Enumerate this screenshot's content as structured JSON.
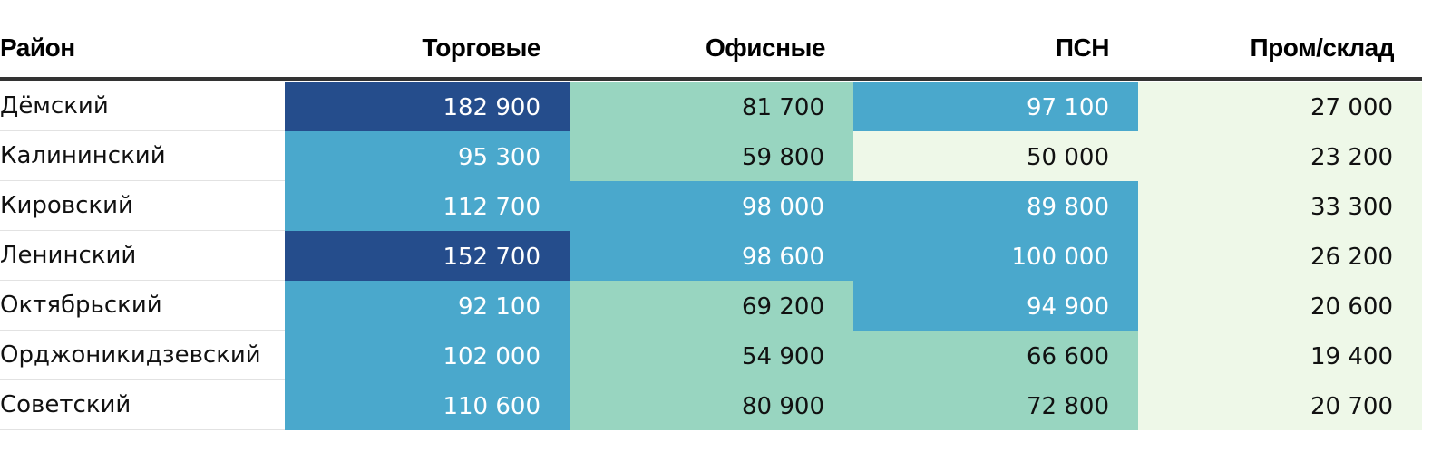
{
  "chart_data": {
    "type": "table",
    "columns": [
      "Район",
      "Торговые",
      "Офисные",
      "ПСН",
      "Пром/склад"
    ],
    "rows": [
      {
        "district": "Дёмский",
        "values": [
          182900,
          81700,
          97100,
          27000
        ],
        "labels": [
          "182 900",
          "81 700",
          "97 100",
          "27 000"
        ]
      },
      {
        "district": "Калининский",
        "values": [
          95300,
          59800,
          50000,
          23200
        ],
        "labels": [
          "95 300",
          "59 800",
          "50 000",
          "23 200"
        ]
      },
      {
        "district": "Кировский",
        "values": [
          112700,
          98000,
          89800,
          33300
        ],
        "labels": [
          "112 700",
          "98 000",
          "89 800",
          "33 300"
        ]
      },
      {
        "district": "Ленинский",
        "values": [
          152700,
          98600,
          100000,
          26200
        ],
        "labels": [
          "152 700",
          "98 600",
          "100 000",
          "26 200"
        ]
      },
      {
        "district": "Октябрьский",
        "values": [
          92100,
          69200,
          94900,
          20600
        ],
        "labels": [
          "92 100",
          "69 200",
          "94 900",
          "20 600"
        ]
      },
      {
        "district": "Орджоникидзевский",
        "values": [
          102000,
          54900,
          66600,
          19400
        ],
        "labels": [
          "102 000",
          "54 900",
          "66 600",
          "19 400"
        ]
      },
      {
        "district": "Советский",
        "values": [
          110600,
          80900,
          72800,
          20700
        ],
        "labels": [
          "110 600",
          "80 900",
          "72 800",
          "20 700"
        ]
      }
    ],
    "color_scale": [
      {
        "min": 0,
        "max": 50000,
        "color": "#eef8e8",
        "text": "#111111"
      },
      {
        "min": 50001,
        "max": 85000,
        "color": "#98d5c0",
        "text": "#111111"
      },
      {
        "min": 85001,
        "max": 150000,
        "color": "#4aa8cc",
        "text": "#ffffff"
      },
      {
        "min": 150001,
        "max": 1000000,
        "color": "#254d8c",
        "text": "#ffffff"
      }
    ]
  }
}
